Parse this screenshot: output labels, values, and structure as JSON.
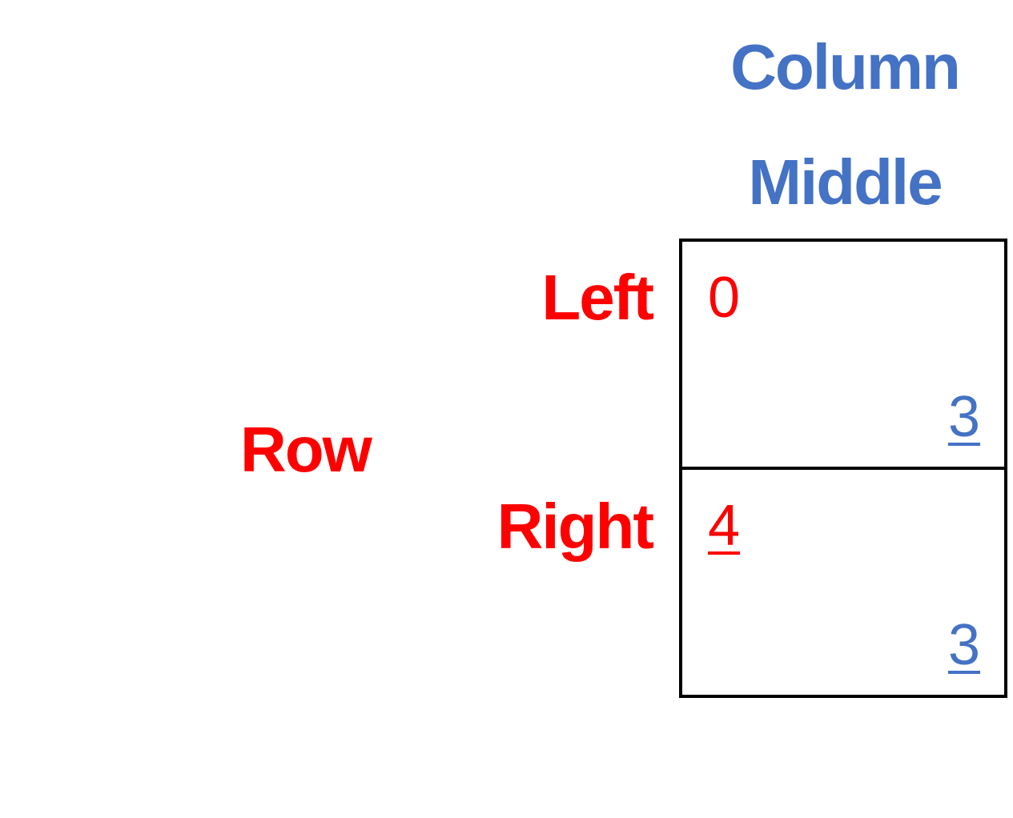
{
  "column_player": {
    "name": "Column",
    "strategy": "Middle",
    "color": "#4472C4"
  },
  "row_player": {
    "name": "Row",
    "strategies": [
      "Left",
      "Right"
    ],
    "color": "#FF0000"
  },
  "matrix": {
    "cells": [
      {
        "row_payoff": "0",
        "col_payoff": "3",
        "row_best": false,
        "col_best": true
      },
      {
        "row_payoff": "4",
        "col_payoff": "3",
        "row_best": true,
        "col_best": true
      }
    ]
  }
}
